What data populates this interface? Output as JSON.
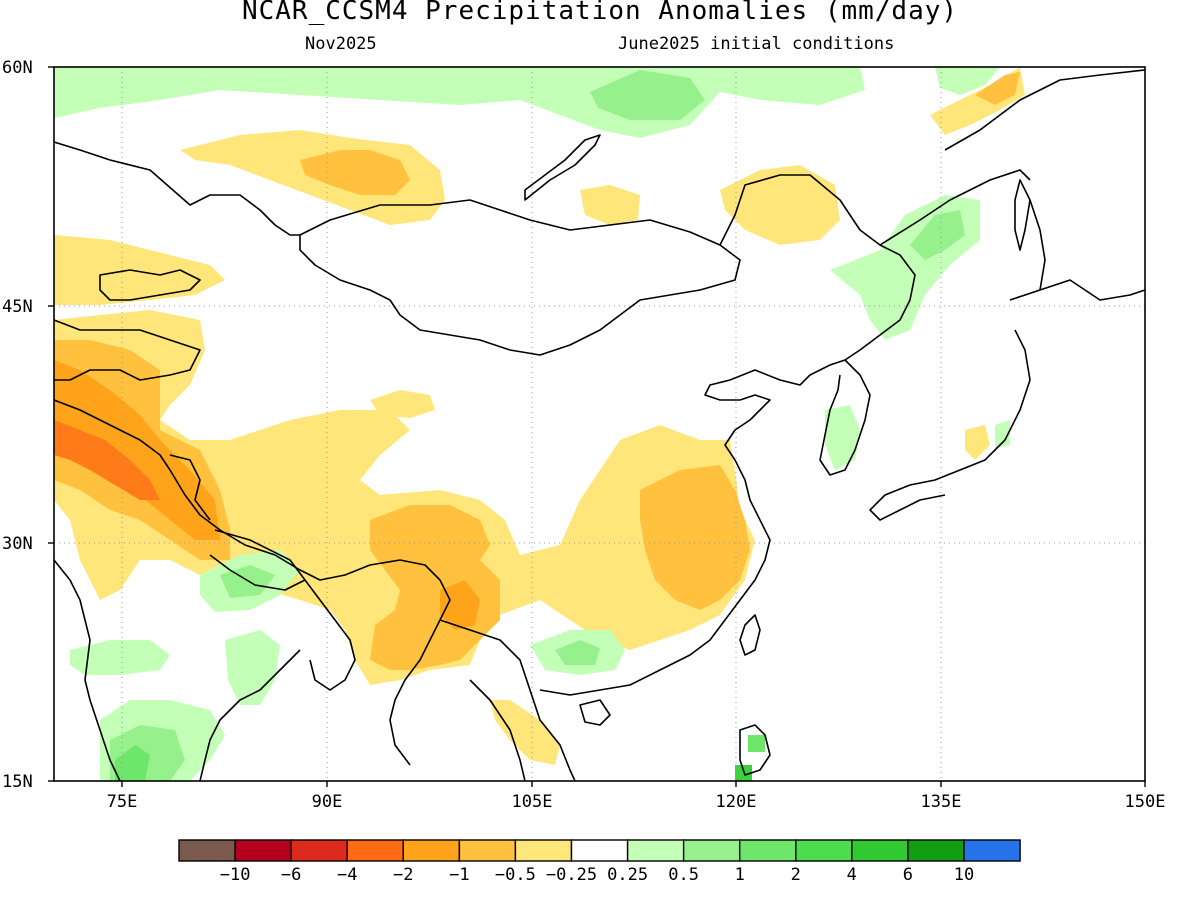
{
  "title": "NCAR_CCSM4 Precipitation Anomalies (mm/day)",
  "subtitle_left": "Nov2025",
  "subtitle_right": "June2025 initial conditions",
  "map": {
    "lat_range": [
      15,
      60
    ],
    "lon_range": [
      70,
      150
    ],
    "lat_ticks": [
      {
        "value": 60,
        "label": "60N"
      },
      {
        "value": 45,
        "label": "45N"
      },
      {
        "value": 30,
        "label": "30N"
      },
      {
        "value": 15,
        "label": "15N"
      }
    ],
    "lon_ticks": [
      {
        "value": 75,
        "label": "75E"
      },
      {
        "value": 90,
        "label": "90E"
      },
      {
        "value": 105,
        "label": "105E"
      },
      {
        "value": 120,
        "label": "120E"
      },
      {
        "value": 135,
        "label": "135E"
      },
      {
        "value": 150,
        "label": "150E"
      }
    ]
  },
  "colorbar": {
    "colors": [
      "#7b5a4e",
      "#b4001e",
      "#dc2a1c",
      "#ff6a12",
      "#ffa41a",
      "#ffc13e",
      "#ffe67a",
      "#ffffff",
      "#c4ffb8",
      "#96f08c",
      "#6ee66a",
      "#4cdc4c",
      "#32c832",
      "#129e12",
      "#2672e8"
    ],
    "labels": [
      "−10",
      "−6",
      "−4",
      "−2",
      "−1",
      "−0.5",
      "−0.25",
      "0.25",
      "0.5",
      "1",
      "2",
      "4",
      "6",
      "10"
    ]
  },
  "colors": {
    "dry_light": "#ffe67a",
    "dry_mid": "#ffc13e",
    "dry_strong": "#ffa41a",
    "dry_stronger": "#ff7a18",
    "wet_light": "#c4ffb8",
    "wet_mid": "#96f08c",
    "wet_strong": "#6ee66a",
    "wet_stronger": "#3cd23c"
  }
}
